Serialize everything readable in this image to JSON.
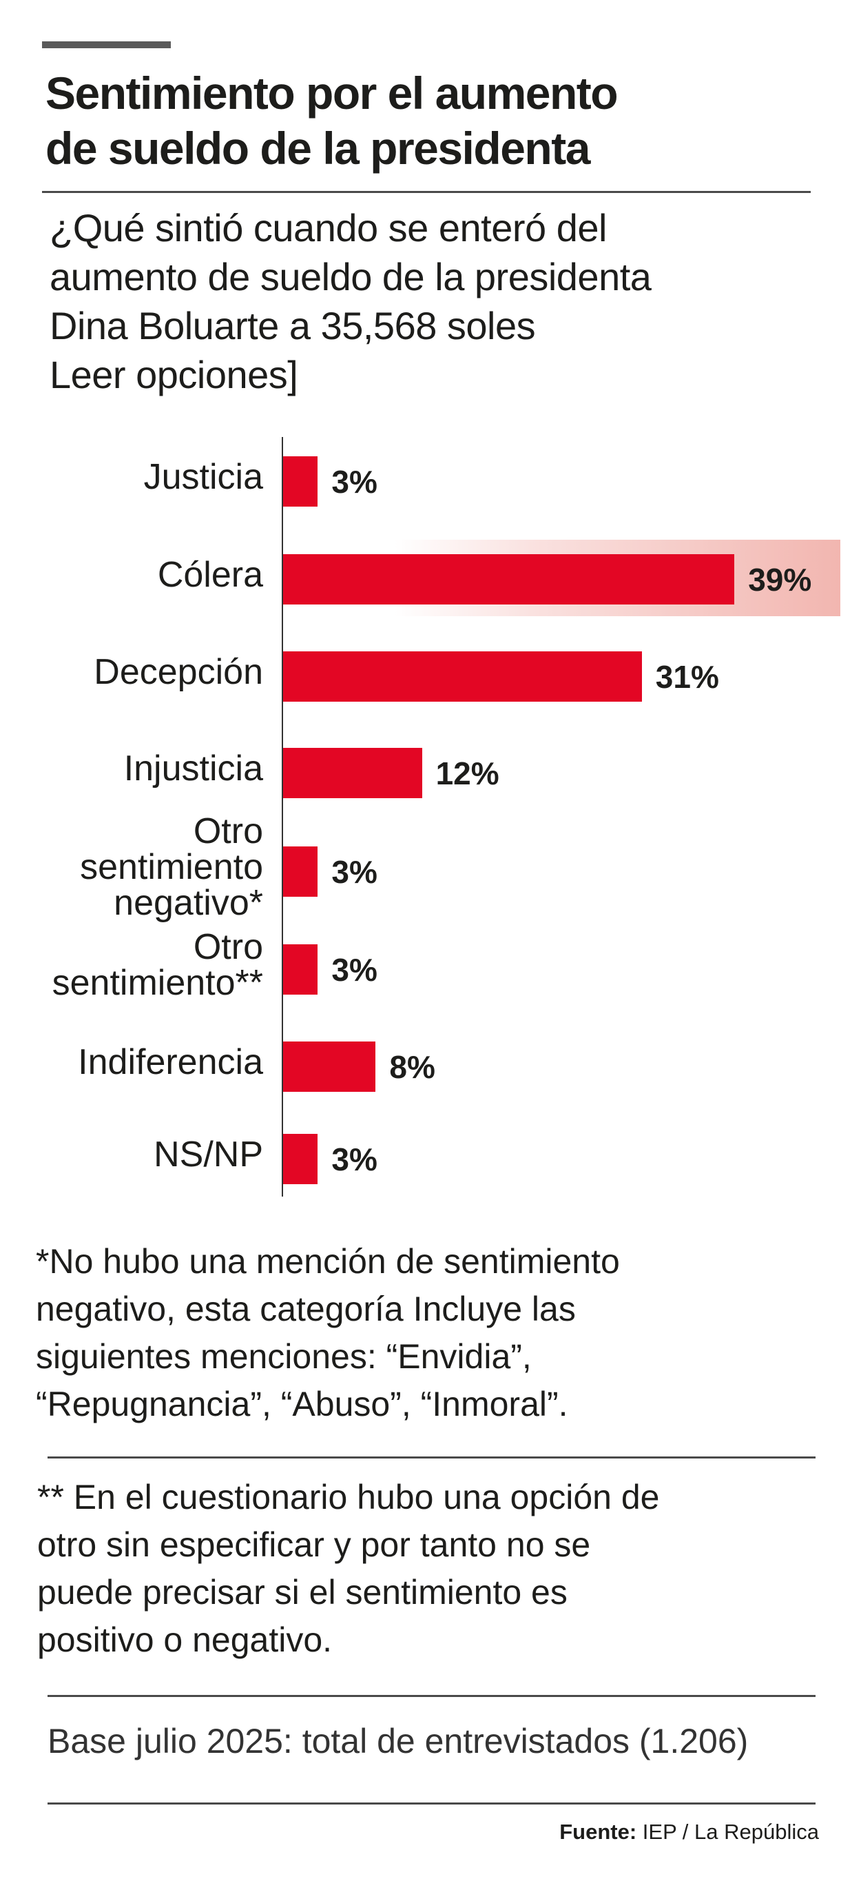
{
  "header": {
    "title_line1": "Sentimiento por el aumento",
    "title_line2": "de sueldo de la presidenta",
    "question_lines": [
      "¿Qué sintió cuando se enteró del",
      "aumento de sueldo de la presidenta",
      "Dina Boluarte a 35,568 soles",
      "Leer opciones]"
    ]
  },
  "chart_data": {
    "type": "bar",
    "orientation": "horizontal",
    "title": "Sentimiento por el aumento de sueldo de la presidenta",
    "categories": [
      "Justicia",
      "Cólera",
      "Decepción",
      "Injusticia",
      "Otro\nsentimiento\nnegativo*",
      "Otro\nsentimiento**",
      "Indiferencia",
      "NS/NP"
    ],
    "values": [
      3,
      39,
      31,
      12,
      3,
      3,
      8,
      3
    ],
    "value_labels": [
      "3%",
      "39%",
      "31%",
      "12%",
      "3%",
      "3%",
      "8%",
      "3%"
    ],
    "highlighted_category": "Cólera",
    "bar_color": "#e30624",
    "highlight_color": "#f2b6b0",
    "unit": "%",
    "grid": false
  },
  "notes": {
    "note1_lines": [
      "*No hubo una mención de sentimiento",
      "negativo, esta categoría Incluye las",
      "siguientes menciones: “Envidia”,",
      "“Repugnancia”, “Abuso”, “Inmoral”."
    ],
    "note2_lines": [
      "** En el cuestionario hubo una opción de",
      "otro sin especificar y por tanto no se",
      "puede precisar si el sentimiento es",
      "positivo o negativo."
    ],
    "base": "Base julio 2025: total de entrevistados (1.206)"
  },
  "source": {
    "label": "Fuente:",
    "text": " IEP / La República"
  }
}
